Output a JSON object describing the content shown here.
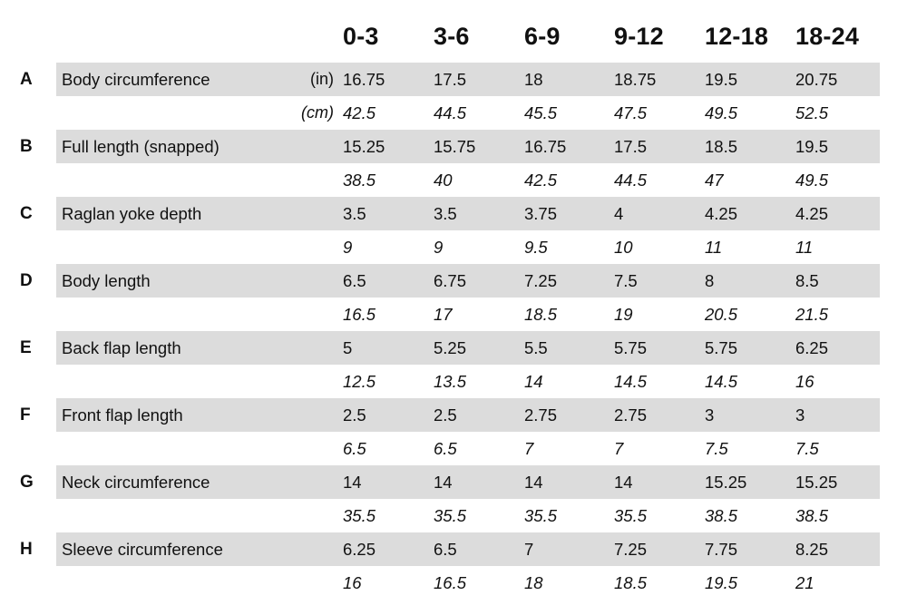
{
  "sizes": [
    "0-3",
    "3-6",
    "6-9",
    "9-12",
    "12-18",
    "18-24"
  ],
  "rows": [
    {
      "letter": "A",
      "label": "Body circumference",
      "unit": "(in)",
      "values": [
        "16.75",
        "17.5",
        "18",
        "18.75",
        "19.5",
        "20.75"
      ]
    },
    {
      "letter": "",
      "label": "",
      "unit": "(cm)",
      "values": [
        "42.5",
        "44.5",
        "45.5",
        "47.5",
        "49.5",
        "52.5"
      ]
    },
    {
      "letter": "B",
      "label": "Full length (snapped)",
      "unit": "",
      "values": [
        "15.25",
        "15.75",
        "16.75",
        "17.5",
        "18.5",
        "19.5"
      ]
    },
    {
      "letter": "",
      "label": "",
      "unit": "",
      "values": [
        "38.5",
        "40",
        "42.5",
        "44.5",
        "47",
        "49.5"
      ]
    },
    {
      "letter": "C",
      "label": "Raglan yoke depth",
      "unit": "",
      "values": [
        "3.5",
        "3.5",
        "3.75",
        "4",
        "4.25",
        "4.25"
      ]
    },
    {
      "letter": "",
      "label": "",
      "unit": "",
      "values": [
        "9",
        "9",
        "9.5",
        "10",
        "11",
        "11"
      ]
    },
    {
      "letter": "D",
      "label": "Body length",
      "unit": "",
      "values": [
        "6.5",
        "6.75",
        "7.25",
        "7.5",
        "8",
        "8.5"
      ]
    },
    {
      "letter": "",
      "label": "",
      "unit": "",
      "values": [
        "16.5",
        "17",
        "18.5",
        "19",
        "20.5",
        "21.5"
      ]
    },
    {
      "letter": "E",
      "label": "Back flap length",
      "unit": "",
      "values": [
        "5",
        "5.25",
        "5.5",
        "5.75",
        "5.75",
        "6.25"
      ]
    },
    {
      "letter": "",
      "label": "",
      "unit": "",
      "values": [
        "12.5",
        "13.5",
        "14",
        "14.5",
        "14.5",
        "16"
      ]
    },
    {
      "letter": "F",
      "label": "Front flap length",
      "unit": "",
      "values": [
        "2.5",
        "2.5",
        "2.75",
        "2.75",
        "3",
        "3"
      ]
    },
    {
      "letter": "",
      "label": "",
      "unit": "",
      "values": [
        "6.5",
        "6.5",
        "7",
        "7",
        "7.5",
        "7.5"
      ]
    },
    {
      "letter": "G",
      "label": "Neck circumference",
      "unit": "",
      "values": [
        "14",
        "14",
        "14",
        "14",
        "15.25",
        "15.25"
      ]
    },
    {
      "letter": "",
      "label": "",
      "unit": "",
      "values": [
        "35.5",
        "35.5",
        "35.5",
        "35.5",
        "38.5",
        "38.5"
      ]
    },
    {
      "letter": "H",
      "label": "Sleeve circumference",
      "unit": "",
      "values": [
        "6.25",
        "6.5",
        "7",
        "7.25",
        "7.75",
        "8.25"
      ]
    },
    {
      "letter": "",
      "label": "",
      "unit": "",
      "values": [
        "16",
        "16.5",
        "18",
        "18.5",
        "19.5",
        "21"
      ]
    }
  ]
}
